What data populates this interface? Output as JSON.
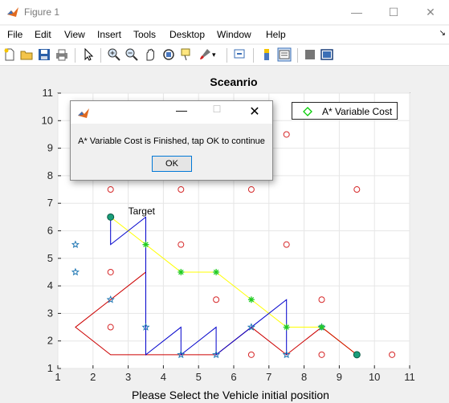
{
  "window": {
    "title": "Figure 1",
    "minimize_glyph": "—",
    "maximize_glyph": "☐",
    "close_glyph": "✕"
  },
  "menu": {
    "items": [
      "File",
      "Edit",
      "View",
      "Insert",
      "Tools",
      "Desktop",
      "Window",
      "Help"
    ],
    "overflow_glyph": "↘"
  },
  "toolbar": {
    "tools": [
      "new-figure-icon",
      "open-file-icon",
      "save-icon",
      "print-icon",
      "pointer-icon",
      "zoom-in-icon",
      "zoom-out-icon",
      "pan-icon",
      "rotate-icon",
      "data-cursor-icon",
      "brush-icon",
      "link-plot-icon",
      "colorbar-icon",
      "legend-icon",
      "hide-plot-tools-icon",
      "show-plot-tools-icon"
    ]
  },
  "chart_data": {
    "type": "line",
    "title": "Sceanrio",
    "xlabel": "Please Select the Vehicle initial position",
    "ylabel": "",
    "xlim": [
      1,
      11
    ],
    "ylim": [
      1,
      11
    ],
    "xticks": [
      1,
      2,
      3,
      4,
      5,
      6,
      7,
      8,
      9,
      10,
      11
    ],
    "yticks": [
      1,
      2,
      3,
      4,
      5,
      6,
      7,
      8,
      9,
      10,
      11
    ],
    "grid": true,
    "legend": {
      "placement": "top-right",
      "entries": [
        {
          "name": "A* Variable Cost",
          "color": "#00cc00",
          "marker": "diamond"
        }
      ]
    },
    "annotations": [
      {
        "text": "Target",
        "x": 3.0,
        "y": 6.6
      }
    ],
    "obstacles_red_circles": [
      [
        2.5,
        2.5
      ],
      [
        2.5,
        4.5
      ],
      [
        2.5,
        7.5
      ],
      [
        4.5,
        5.5
      ],
      [
        4.5,
        7.5
      ],
      [
        5.5,
        3.5
      ],
      [
        6.5,
        1.5
      ],
      [
        6.5,
        7.5
      ],
      [
        7.5,
        5.5
      ],
      [
        7.5,
        9.5
      ],
      [
        8.5,
        1.5
      ],
      [
        8.5,
        3.5
      ],
      [
        9.5,
        7.5
      ],
      [
        10.5,
        1.5
      ]
    ],
    "blue_stars": [
      [
        1.5,
        5.5
      ],
      [
        1.5,
        4.5
      ],
      [
        2.5,
        3.5
      ],
      [
        3.5,
        2.5
      ],
      [
        4.5,
        1.5
      ],
      [
        5.5,
        1.5
      ],
      [
        6.5,
        2.5
      ],
      [
        7.5,
        1.5
      ],
      [
        8.5,
        2.5
      ]
    ],
    "green_stars": [
      [
        3.5,
        5.5
      ],
      [
        4.5,
        4.5
      ],
      [
        5.5,
        4.5
      ],
      [
        6.5,
        3.5
      ],
      [
        7.5,
        2.5
      ],
      [
        8.5,
        2.5
      ]
    ],
    "series": [
      {
        "color": "#ffff00",
        "values": [
          [
            2.5,
            6.5
          ],
          [
            3.5,
            5.5
          ],
          [
            4.5,
            4.5
          ],
          [
            5.5,
            4.5
          ],
          [
            6.5,
            3.5
          ],
          [
            7.5,
            2.5
          ],
          [
            8.5,
            2.5
          ],
          [
            9.5,
            1.5
          ]
        ]
      },
      {
        "color": "#cc0000",
        "values": [
          [
            3.5,
            5.5
          ],
          [
            3.5,
            4.5
          ],
          [
            1.5,
            2.5
          ],
          [
            2.5,
            1.5
          ],
          [
            5.5,
            1.5
          ],
          [
            6.5,
            2.5
          ],
          [
            7.5,
            1.5
          ],
          [
            8.5,
            2.5
          ],
          [
            9.5,
            1.5
          ]
        ]
      },
      {
        "color": "#0000cc",
        "values": [
          [
            2.5,
            6.5
          ],
          [
            2.5,
            5.5
          ],
          [
            3.5,
            6.5
          ],
          [
            3.5,
            1.5
          ],
          [
            4.5,
            2.5
          ],
          [
            4.5,
            1.5
          ],
          [
            5.5,
            2.5
          ],
          [
            5.5,
            1.5
          ],
          [
            6.5,
            2.5
          ],
          [
            7.5,
            3.5
          ],
          [
            7.5,
            1.5
          ]
        ]
      }
    ],
    "start_point": [
      9.5,
      1.5
    ],
    "target_point": [
      2.5,
      6.5
    ]
  },
  "dialog": {
    "message": "A* Variable Cost is Finished, tap OK to continue",
    "ok_label": "OK"
  }
}
